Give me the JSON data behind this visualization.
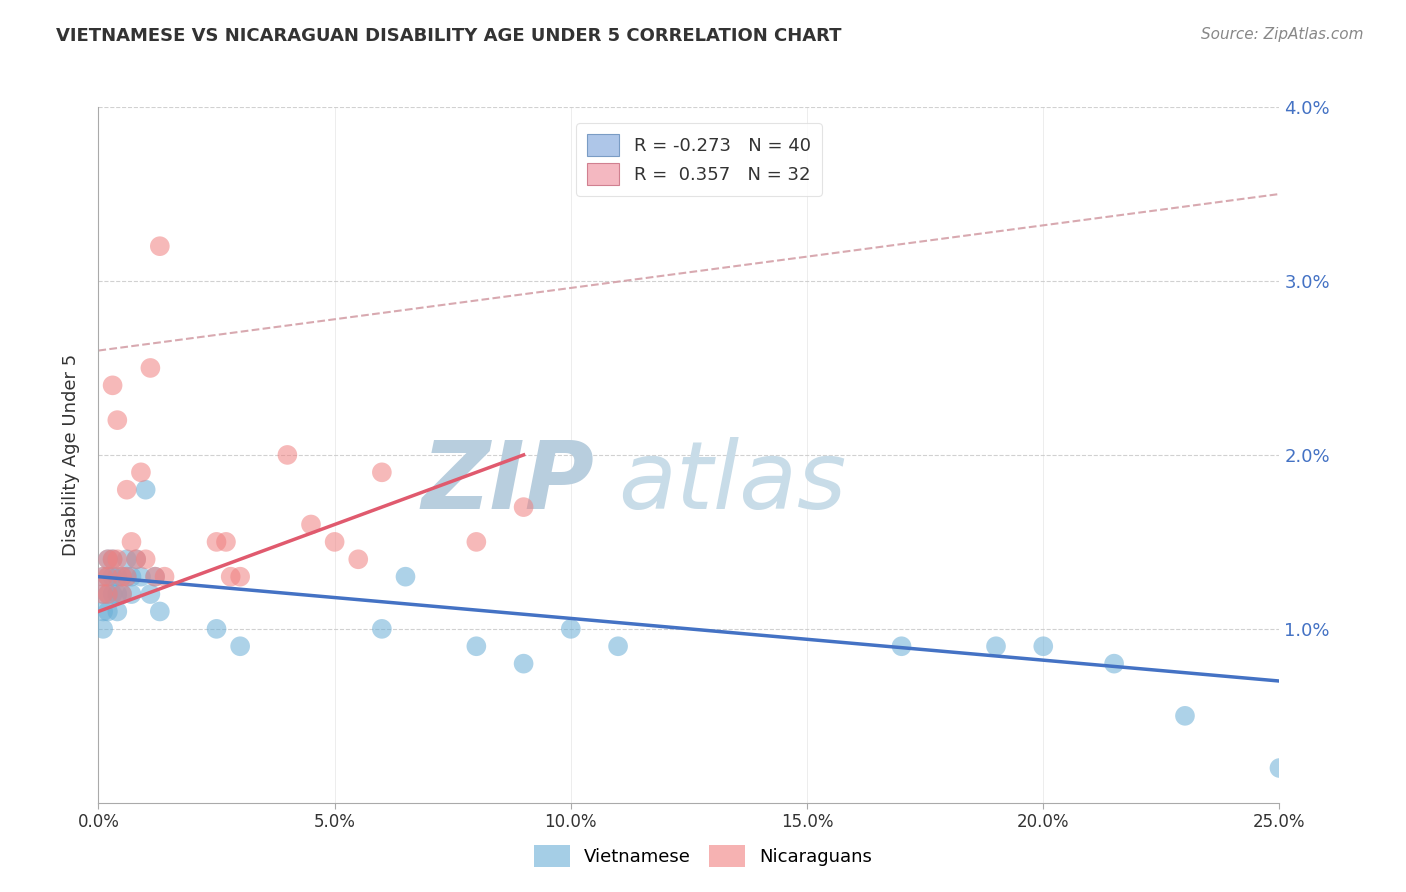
{
  "title": "VIETNAMESE VS NICARAGUAN DISABILITY AGE UNDER 5 CORRELATION CHART",
  "source": "Source: ZipAtlas.com",
  "ylabel": "Disability Age Under 5",
  "xlim": [
    0.0,
    0.25
  ],
  "ylim": [
    0.0,
    0.04
  ],
  "xticks": [
    0.0,
    0.05,
    0.1,
    0.15,
    0.2,
    0.25
  ],
  "yticks_left": [
    0.0,
    0.01,
    0.02,
    0.03,
    0.04
  ],
  "yticks_right": [
    0.01,
    0.02,
    0.03,
    0.04
  ],
  "legend_entries": [
    {
      "label": "R = -0.273   N = 40",
      "color": "#aec6e8",
      "edge": "#7a9cc4"
    },
    {
      "label": "R =  0.357   N = 32",
      "color": "#f4b8c1",
      "edge": "#d08090"
    }
  ],
  "vietnamese_color": "#6aaed6",
  "nicaraguan_color": "#f08080",
  "trend_viet_color": "#4472c4",
  "trend_nica_color": "#e05a6e",
  "ref_line_color": "#d4a0a8",
  "background_color": "#ffffff",
  "watermark_zip": "ZIP",
  "watermark_atlas": "atlas",
  "watermark_color": "#c8d8ea",
  "title_color": "#333333",
  "source_color": "#888888",
  "axis_label_color": "#4472c4",
  "vietnamese_x": [
    0.001,
    0.001,
    0.001,
    0.001,
    0.002,
    0.002,
    0.002,
    0.002,
    0.003,
    0.003,
    0.003,
    0.004,
    0.004,
    0.004,
    0.005,
    0.005,
    0.006,
    0.006,
    0.007,
    0.007,
    0.008,
    0.009,
    0.01,
    0.011,
    0.012,
    0.013,
    0.025,
    0.03,
    0.06,
    0.065,
    0.08,
    0.09,
    0.1,
    0.11,
    0.17,
    0.19,
    0.2,
    0.215,
    0.23,
    0.25
  ],
  "vietnamese_y": [
    0.013,
    0.012,
    0.011,
    0.01,
    0.014,
    0.013,
    0.012,
    0.011,
    0.013,
    0.014,
    0.012,
    0.013,
    0.011,
    0.012,
    0.013,
    0.012,
    0.013,
    0.014,
    0.012,
    0.013,
    0.014,
    0.013,
    0.018,
    0.012,
    0.013,
    0.011,
    0.01,
    0.009,
    0.01,
    0.013,
    0.009,
    0.008,
    0.01,
    0.009,
    0.009,
    0.009,
    0.009,
    0.008,
    0.005,
    0.002
  ],
  "nicaraguan_x": [
    0.001,
    0.001,
    0.002,
    0.002,
    0.002,
    0.003,
    0.003,
    0.004,
    0.004,
    0.005,
    0.005,
    0.006,
    0.006,
    0.007,
    0.008,
    0.009,
    0.01,
    0.011,
    0.012,
    0.013,
    0.014,
    0.025,
    0.027,
    0.028,
    0.03,
    0.04,
    0.045,
    0.05,
    0.055,
    0.06,
    0.08,
    0.09
  ],
  "nicaraguan_y": [
    0.013,
    0.012,
    0.014,
    0.013,
    0.012,
    0.024,
    0.014,
    0.022,
    0.014,
    0.013,
    0.012,
    0.018,
    0.013,
    0.015,
    0.014,
    0.019,
    0.014,
    0.025,
    0.013,
    0.032,
    0.013,
    0.015,
    0.015,
    0.013,
    0.013,
    0.02,
    0.016,
    0.015,
    0.014,
    0.019,
    0.015,
    0.017
  ],
  "viet_trend_x": [
    0.0,
    0.25
  ],
  "viet_trend_y": [
    0.013,
    0.007
  ],
  "nica_trend_x": [
    0.0,
    0.09
  ],
  "nica_trend_y": [
    0.011,
    0.02
  ],
  "ref_line_x": [
    0.0,
    0.25
  ],
  "ref_line_y": [
    0.026,
    0.035
  ]
}
